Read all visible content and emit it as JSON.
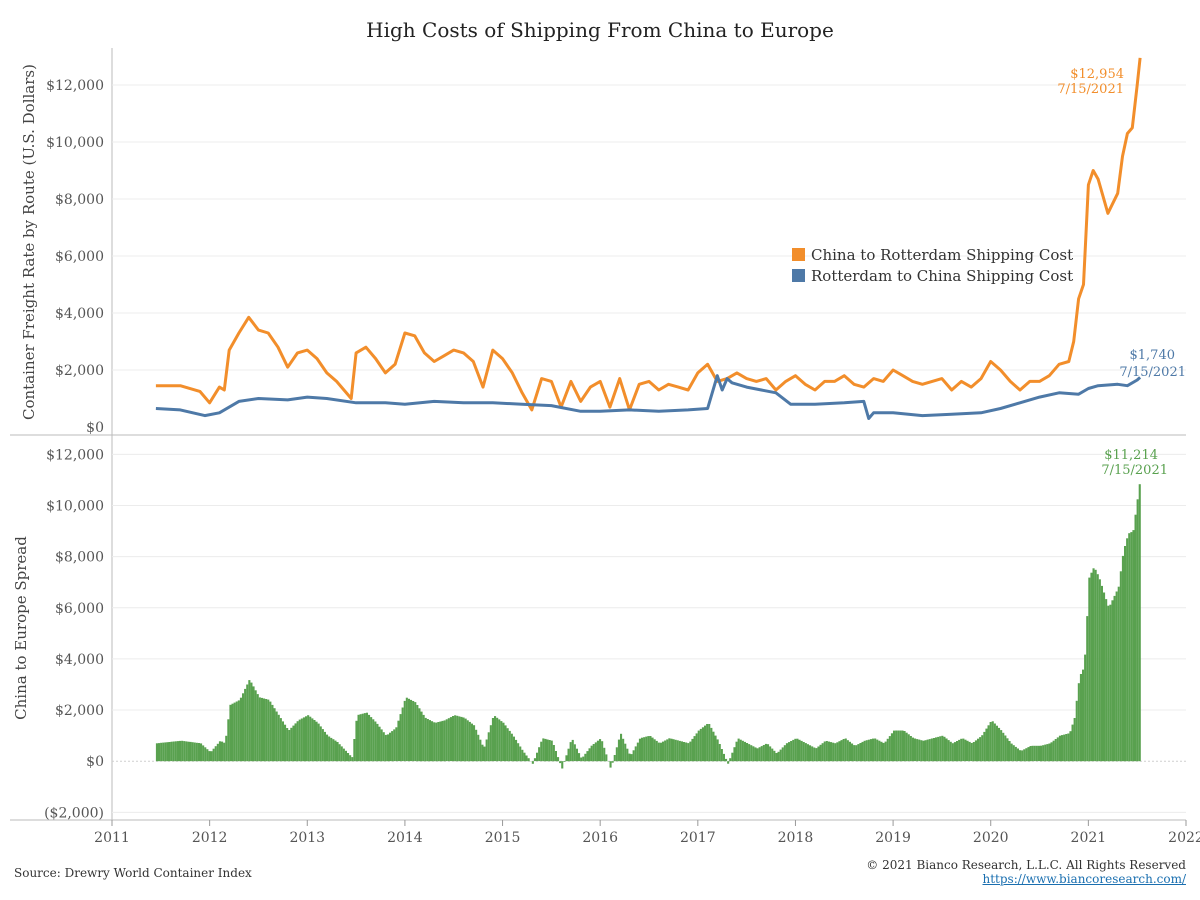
{
  "title": "High Costs of Shipping From China to Europe",
  "footer": {
    "source": "Source: Drewry World Container Index",
    "copyright": "© 2021 Bianco Research, L.L.C. All Rights Reserved",
    "url": "https://www.biancoresearch.com/"
  },
  "colors": {
    "china_to_rotterdam": "#f28e2b",
    "rotterdam_to_china": "#4e79a7",
    "spread": "#59a14f"
  },
  "chart_data": [
    {
      "type": "line",
      "ylabel": "Container Freight Rate by Route (U.S. Dollars)",
      "ylim": [
        0,
        13300
      ],
      "yticks": [
        0,
        2000,
        4000,
        6000,
        8000,
        10000,
        12000
      ],
      "ytick_labels": [
        "$0",
        "$2,000",
        "$4,000",
        "$6,000",
        "$8,000",
        "$10,000",
        "$12,000"
      ],
      "legend_position": "center-right",
      "series": [
        {
          "name": "China to Rotterdam Shipping Cost",
          "color": "#f28e2b",
          "x": [
            2011.45,
            2011.7,
            2011.9,
            2012.0,
            2012.1,
            2012.15,
            2012.2,
            2012.3,
            2012.4,
            2012.5,
            2012.6,
            2012.7,
            2012.8,
            2012.9,
            2013.0,
            2013.1,
            2013.2,
            2013.3,
            2013.45,
            2013.5,
            2013.6,
            2013.7,
            2013.8,
            2013.9,
            2014.0,
            2014.1,
            2014.2,
            2014.3,
            2014.4,
            2014.5,
            2014.6,
            2014.7,
            2014.8,
            2014.9,
            2015.0,
            2015.1,
            2015.2,
            2015.3,
            2015.4,
            2015.5,
            2015.6,
            2015.7,
            2015.8,
            2015.9,
            2016.0,
            2016.1,
            2016.2,
            2016.3,
            2016.4,
            2016.5,
            2016.6,
            2016.7,
            2016.8,
            2016.9,
            2017.0,
            2017.1,
            2017.2,
            2017.3,
            2017.4,
            2017.5,
            2017.6,
            2017.7,
            2017.8,
            2017.9,
            2018.0,
            2018.1,
            2018.2,
            2018.3,
            2018.4,
            2018.5,
            2018.6,
            2018.7,
            2018.8,
            2018.9,
            2019.0,
            2019.1,
            2019.2,
            2019.3,
            2019.4,
            2019.5,
            2019.6,
            2019.7,
            2019.8,
            2019.9,
            2020.0,
            2020.1,
            2020.2,
            2020.3,
            2020.4,
            2020.5,
            2020.6,
            2020.7,
            2020.8,
            2020.85,
            2020.9,
            2020.95,
            2021.0,
            2021.05,
            2021.1,
            2021.2,
            2021.3,
            2021.35,
            2021.4,
            2021.45,
            2021.5,
            2021.53
          ],
          "values": [
            1450,
            1450,
            1250,
            850,
            1400,
            1300,
            2700,
            3300,
            3850,
            3400,
            3300,
            2800,
            2100,
            2600,
            2700,
            2400,
            1900,
            1600,
            1000,
            2600,
            2800,
            2400,
            1900,
            2200,
            3300,
            3200,
            2600,
            2300,
            2500,
            2700,
            2600,
            2300,
            1400,
            2700,
            2400,
            1900,
            1200,
            600,
            1700,
            1600,
            700,
            1600,
            900,
            1400,
            1600,
            700,
            1700,
            600,
            1500,
            1600,
            1300,
            1500,
            1400,
            1300,
            1900,
            2200,
            1600,
            1700,
            1900,
            1700,
            1600,
            1700,
            1300,
            1600,
            1800,
            1500,
            1300,
            1600,
            1600,
            1800,
            1500,
            1400,
            1700,
            1600,
            2000,
            1800,
            1600,
            1500,
            1600,
            1700,
            1300,
            1600,
            1400,
            1700,
            2300,
            2000,
            1600,
            1300,
            1600,
            1600,
            1800,
            2200,
            2300,
            3000,
            4500,
            5000,
            8500,
            9000,
            8700,
            7500,
            8200,
            9500,
            10300,
            10500,
            12000,
            12954
          ]
        },
        {
          "name": "Rotterdam to China Shipping Cost",
          "color": "#4e79a7",
          "x": [
            2011.45,
            2011.7,
            2011.95,
            2012.1,
            2012.3,
            2012.5,
            2012.8,
            2013.0,
            2013.2,
            2013.5,
            2013.8,
            2014.0,
            2014.3,
            2014.6,
            2014.9,
            2015.2,
            2015.5,
            2015.8,
            2016.0,
            2016.3,
            2016.6,
            2016.9,
            2017.1,
            2017.2,
            2017.25,
            2017.3,
            2017.35,
            2017.5,
            2017.8,
            2017.95,
            2018.2,
            2018.5,
            2018.7,
            2018.75,
            2018.8,
            2019.0,
            2019.3,
            2019.6,
            2019.9,
            2020.1,
            2020.3,
            2020.5,
            2020.7,
            2020.9,
            2021.0,
            2021.1,
            2021.3,
            2021.4,
            2021.5,
            2021.53
          ],
          "values": [
            650,
            600,
            400,
            500,
            900,
            1000,
            950,
            1050,
            1000,
            850,
            850,
            800,
            900,
            850,
            850,
            800,
            750,
            550,
            550,
            600,
            550,
            600,
            650,
            1800,
            1300,
            1700,
            1550,
            1400,
            1200,
            800,
            800,
            850,
            900,
            300,
            500,
            500,
            400,
            450,
            500,
            650,
            850,
            1050,
            1200,
            1150,
            1350,
            1450,
            1500,
            1450,
            1650,
            1740
          ]
        }
      ],
      "annotations": [
        {
          "text": "$12,954",
          "date_label": "7/15/2021",
          "x": 2021.53,
          "y": 12954,
          "color": "#f28e2b"
        },
        {
          "text": "$1,740",
          "date_label": "7/15/2021",
          "x": 2021.53,
          "y": 1740,
          "color": "#4e79a7"
        }
      ]
    },
    {
      "type": "bar",
      "ylabel": "China to Europe Spread",
      "ylim": [
        -2300,
        12600
      ],
      "yticks": [
        -2000,
        0,
        2000,
        4000,
        6000,
        8000,
        10000,
        12000
      ],
      "ytick_labels": [
        "($2,000)",
        "$0",
        "$2,000",
        "$4,000",
        "$6,000",
        "$8,000",
        "$10,000",
        "$12,000"
      ],
      "x": [
        2011.45,
        2011.7,
        2011.9,
        2012.0,
        2012.1,
        2012.15,
        2012.2,
        2012.3,
        2012.4,
        2012.5,
        2012.6,
        2012.7,
        2012.8,
        2012.9,
        2013.0,
        2013.1,
        2013.2,
        2013.3,
        2013.45,
        2013.5,
        2013.6,
        2013.7,
        2013.8,
        2013.9,
        2014.0,
        2014.1,
        2014.2,
        2014.3,
        2014.4,
        2014.5,
        2014.6,
        2014.7,
        2014.8,
        2014.9,
        2015.0,
        2015.1,
        2015.2,
        2015.3,
        2015.4,
        2015.5,
        2015.6,
        2015.7,
        2015.8,
        2015.9,
        2016.0,
        2016.1,
        2016.2,
        2016.3,
        2016.4,
        2016.5,
        2016.6,
        2016.7,
        2016.8,
        2016.9,
        2017.0,
        2017.1,
        2017.2,
        2017.3,
        2017.4,
        2017.5,
        2017.6,
        2017.7,
        2017.8,
        2017.9,
        2018.0,
        2018.1,
        2018.2,
        2018.3,
        2018.4,
        2018.5,
        2018.6,
        2018.7,
        2018.8,
        2018.9,
        2019.0,
        2019.1,
        2019.2,
        2019.3,
        2019.4,
        2019.5,
        2019.6,
        2019.7,
        2019.8,
        2019.9,
        2020.0,
        2020.1,
        2020.2,
        2020.3,
        2020.4,
        2020.5,
        2020.6,
        2020.7,
        2020.8,
        2020.85,
        2020.9,
        2020.95,
        2021.0,
        2021.05,
        2021.1,
        2021.2,
        2021.3,
        2021.35,
        2021.4,
        2021.45,
        2021.5,
        2021.53
      ],
      "values": [
        700,
        800,
        700,
        350,
        800,
        700,
        2200,
        2400,
        3200,
        2500,
        2400,
        1800,
        1200,
        1600,
        1800,
        1500,
        1000,
        750,
        150,
        1800,
        1900,
        1500,
        1000,
        1300,
        2500,
        2300,
        1700,
        1500,
        1600,
        1800,
        1700,
        1400,
        500,
        1800,
        1500,
        1000,
        400,
        -100,
        900,
        800,
        -300,
        900,
        100,
        600,
        900,
        -300,
        1100,
        200,
        900,
        1000,
        700,
        900,
        800,
        700,
        1200,
        1500,
        800,
        -100,
        900,
        700,
        500,
        700,
        300,
        700,
        900,
        700,
        500,
        800,
        700,
        900,
        600,
        800,
        900,
        700,
        1200,
        1200,
        900,
        800,
        900,
        1000,
        700,
        900,
        700,
        1000,
        1600,
        1200,
        700,
        400,
        600,
        600,
        700,
        1000,
        1100,
        1700,
        3300,
        3700,
        7200,
        7600,
        7200,
        6000,
        6800,
        8200,
        8900,
        9000,
        10400,
        11214
      ],
      "annotations": [
        {
          "text": "$11,214",
          "date_label": "7/15/2021",
          "x": 2021.53,
          "y": 11214,
          "color": "#59a14f"
        }
      ]
    }
  ],
  "x_axis": {
    "range": [
      2011,
      2022
    ],
    "ticks": [
      2011,
      2012,
      2013,
      2014,
      2015,
      2016,
      2017,
      2018,
      2019,
      2020,
      2021,
      2022
    ],
    "tick_labels": [
      "2011",
      "2012",
      "2013",
      "2014",
      "2015",
      "2016",
      "2017",
      "2018",
      "2019",
      "2020",
      "2021",
      "2022"
    ]
  }
}
